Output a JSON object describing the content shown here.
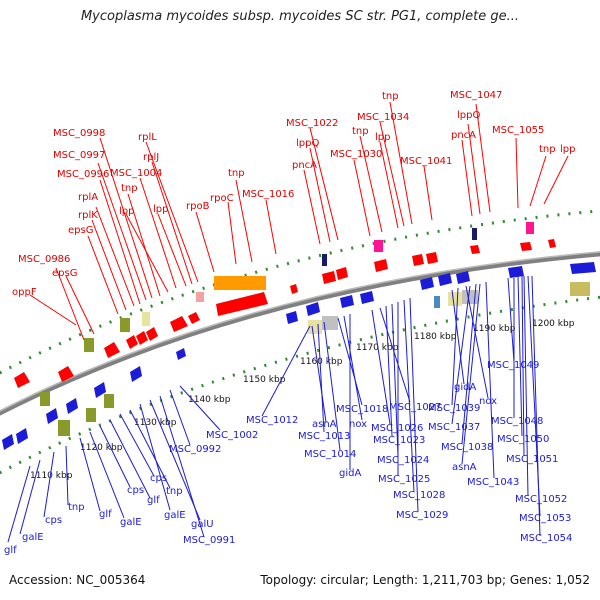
{
  "title": "Mycoplasma mycoides subsp. mycoides SC str. PG1, complete ge...",
  "footer": {
    "accession": "Accession: NC_005364",
    "summary": "Topology: circular; Length: 1,211,703 bp; Genes: 1,052"
  },
  "colors": {
    "forward": "#ff0000",
    "reverse": "#1b1bd8",
    "backbone": "#808080",
    "tick": "#228b22",
    "orange": "#ff9a00",
    "magenta": "#ff1493",
    "olive": "#8a9a2a"
  },
  "scale_labels": [
    "1110 kbp",
    "1120 kbp",
    "1130 kbp",
    "1140 kbp",
    "1150 kbp",
    "1160 kbp",
    "1170 kbp",
    "1180 kbp",
    "1190 kbp",
    "1200 kbp"
  ],
  "top_labels": [
    "oppF",
    "MSC_0986",
    "epsG",
    "epsG",
    "rplK",
    "rplA",
    "MSC_0996",
    "MSC_0997",
    "MSC_0998",
    "tnp",
    "lpp",
    "MSC_1004",
    "lpp",
    "rplJ",
    "rplL",
    "rpoB",
    "rpoC",
    "tnp",
    "MSC_1016",
    "pncA",
    "lppQ",
    "MSC_1022",
    "MSC_1030",
    "tnp",
    "lpp",
    "MSC_1034",
    "tnp",
    "MSC_1041",
    "pncA",
    "lppQ",
    "MSC_1047",
    "MSC_1055",
    "tnp",
    "lpp"
  ],
  "bottom_labels": [
    "glf",
    "galE",
    "cps",
    "tnp",
    "glf",
    "galE",
    "cps",
    "glf",
    "cps",
    "tnp",
    "galE",
    "galU",
    "MSC_0991",
    "MSC_0992",
    "MSC_1002",
    "MSC_1012",
    "asnA",
    "MSC_1013",
    "MSC_1014",
    "MSC_1018",
    "nox",
    "gidA",
    "MSC_1026",
    "MSC_1027",
    "MSC_1023",
    "MSC_1024",
    "MSC_1025",
    "MSC_1028",
    "MSC_1029",
    "gidA",
    "MSC_1039",
    "nox",
    "MSC_1037",
    "MSC_1038",
    "asnA",
    "MSC_1043",
    "MSC_1049",
    "MSC_1048",
    "MSC_1050",
    "MSC_1051",
    "MSC_1052",
    "MSC_1053",
    "MSC_1054"
  ]
}
